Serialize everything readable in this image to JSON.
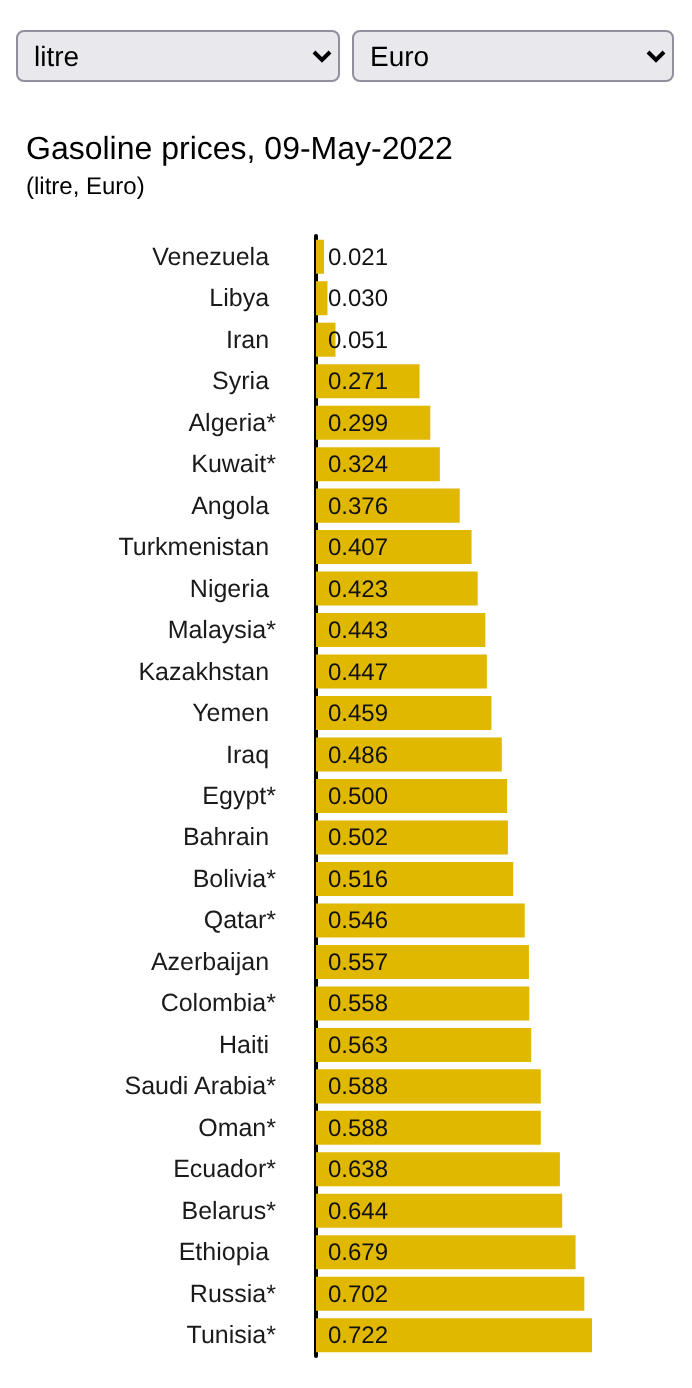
{
  "chart_data": {
    "type": "bar",
    "orientation": "horizontal",
    "title": "Gasoline prices, 09-May-2022",
    "subtitle": "(litre, Euro)",
    "annotations": [
      "litre",
      "Euro"
    ],
    "color": "#e0b800",
    "categories": [
      "Venezuela ",
      "Libya ",
      "Iran ",
      "Syria ",
      "Algeria*",
      "Kuwait*",
      "Angola ",
      "Turkmenistan ",
      "Nigeria ",
      "Malaysia*",
      "Kazakhstan ",
      "Yemen ",
      "Iraq ",
      "Egypt*",
      "Bahrain ",
      "Bolivia*",
      "Qatar*",
      "Azerbaijan ",
      "Colombia*",
      "Haiti ",
      "Saudi Arabia*",
      "Oman*",
      "Ecuador*",
      "Belarus*",
      "Ethiopia ",
      "Russia*",
      "Tunisia*"
    ],
    "values": [
      0.021,
      0.03,
      0.051,
      0.271,
      0.299,
      0.324,
      0.376,
      0.407,
      0.423,
      0.443,
      0.447,
      0.459,
      0.486,
      0.5,
      0.502,
      0.516,
      0.546,
      0.557,
      0.558,
      0.563,
      0.588,
      0.588,
      0.638,
      0.644,
      0.679,
      0.702,
      0.722
    ],
    "value_labels": [
      "0.021",
      "0.030",
      "0.051",
      "0.271",
      "0.299",
      "0.324",
      "0.376",
      "0.407",
      "0.423",
      "0.443",
      "0.447",
      "0.459",
      "0.486",
      "0.500",
      "0.502",
      "0.516",
      "0.546",
      "0.557",
      "0.558",
      "0.563",
      "0.588",
      "0.588",
      "0.638",
      "0.644",
      "0.679",
      "0.702",
      "0.722"
    ]
  }
}
